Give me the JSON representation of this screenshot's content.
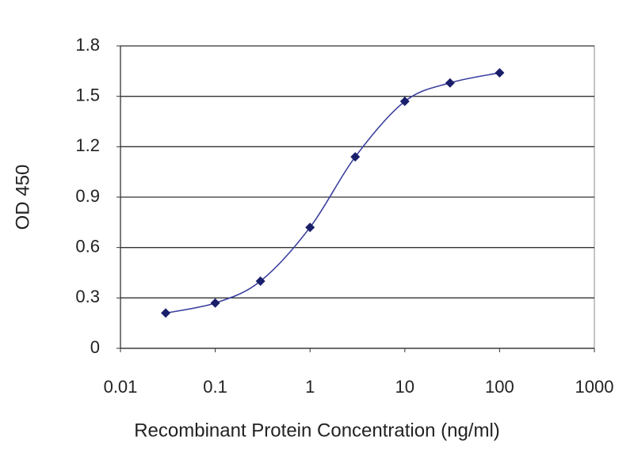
{
  "chart_data": {
    "type": "line",
    "x_label": "Recombinant Protein Concentration (ng/ml)",
    "y_label": "OD 450",
    "x": [
      0.03,
      0.1,
      0.3,
      1,
      3,
      10,
      30,
      100
    ],
    "values": [
      0.21,
      0.27,
      0.4,
      0.72,
      1.14,
      1.47,
      1.58,
      1.64
    ],
    "color": "#3b3f9e",
    "marker_color": "#1a1f6b",
    "xscale": "log",
    "xlim": [
      0.01,
      1000
    ],
    "xticks": [
      0.01,
      0.1,
      1,
      10,
      100,
      1000
    ],
    "ylim": [
      0,
      1.8
    ],
    "yticks": [
      0,
      0.3,
      0.6,
      0.9,
      1.2,
      1.5,
      1.8
    ],
    "grid": true
  }
}
